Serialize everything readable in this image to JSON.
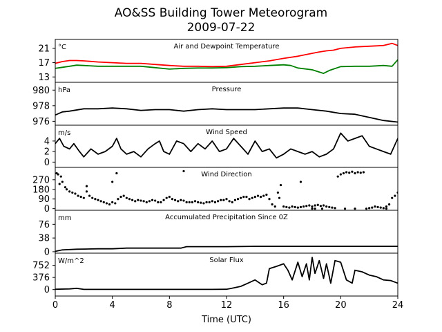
{
  "title": "AO&SS Building Tower Meteorogram",
  "subtitle": "2009-07-22",
  "xlabel": "Time (UTC)",
  "x_ticks": [
    0,
    4,
    8,
    12,
    16,
    20,
    24
  ],
  "xlim": [
    0,
    24
  ],
  "chart_data": [
    {
      "type": "line",
      "title": "Air and Dewpoint Temperature",
      "unit": "°C",
      "ylim": [
        11.5,
        23.5
      ],
      "y_ticks": [
        13,
        17,
        21
      ],
      "series": [
        {
          "color": "#ff0000",
          "x": [
            0,
            0.5,
            1,
            1.5,
            2,
            3,
            4,
            5,
            6,
            7,
            8,
            9,
            10,
            11,
            12,
            13,
            14,
            15,
            16,
            17,
            18,
            18.5,
            19,
            19.5,
            20,
            21,
            22,
            23,
            23.6,
            24
          ],
          "y": [
            16.8,
            17.3,
            17.6,
            17.6,
            17.5,
            17.2,
            17.0,
            16.8,
            16.8,
            16.5,
            16.2,
            16.0,
            16.0,
            15.9,
            16.0,
            16.5,
            17.0,
            17.5,
            18.2,
            18.8,
            19.6,
            20.0,
            20.3,
            20.5,
            21.0,
            21.4,
            21.6,
            21.8,
            22.4,
            21.8
          ]
        },
        {
          "color": "#008000",
          "x": [
            0,
            0.5,
            1,
            1.5,
            2,
            3,
            4,
            5,
            6,
            7,
            8,
            9,
            10,
            11,
            12,
            13,
            14,
            15,
            16,
            16.5,
            17,
            18,
            18.8,
            19.2,
            20,
            21,
            22,
            23,
            23.6,
            24
          ],
          "y": [
            15.4,
            15.7,
            16.0,
            16.3,
            16.2,
            16.0,
            16.0,
            16.0,
            16.0,
            15.6,
            15.2,
            15.4,
            15.5,
            15.5,
            15.6,
            15.9,
            16.0,
            16.2,
            16.4,
            16.2,
            15.5,
            15.0,
            14.0,
            14.8,
            15.9,
            16.0,
            16.0,
            16.2,
            16.0,
            17.8
          ]
        }
      ]
    },
    {
      "type": "line",
      "title": "Pressure",
      "unit": "hPa",
      "ylim": [
        975.5,
        981
      ],
      "y_ticks": [
        976,
        978,
        980
      ],
      "series": [
        {
          "color": "#000000",
          "x": [
            0,
            0.5,
            1,
            2,
            3,
            4,
            5,
            6,
            7,
            8,
            9,
            10,
            11,
            12,
            13,
            14,
            15,
            16,
            17,
            18,
            19,
            20,
            21,
            22,
            23,
            24
          ],
          "y": [
            976.8,
            977.2,
            977.3,
            977.6,
            977.6,
            977.7,
            977.6,
            977.4,
            977.5,
            977.5,
            977.3,
            977.5,
            977.6,
            977.5,
            977.5,
            977.5,
            977.6,
            977.7,
            977.7,
            977.5,
            977.3,
            977.0,
            976.9,
            976.5,
            976.1,
            975.9
          ]
        }
      ]
    },
    {
      "type": "line",
      "title": "Wind Speed",
      "unit": "m/s",
      "ylim": [
        -1,
        7
      ],
      "y_ticks": [
        0,
        2,
        4
      ],
      "series": [
        {
          "color": "#000000",
          "x": [
            0,
            0.3,
            0.6,
            1,
            1.3,
            1.7,
            2,
            2.5,
            3,
            3.5,
            4,
            4.3,
            4.6,
            5,
            5.5,
            6,
            6.5,
            7,
            7.3,
            7.6,
            8,
            8.5,
            9,
            9.5,
            10,
            10.5,
            11,
            11.5,
            12,
            12.5,
            13,
            13.5,
            14,
            14.5,
            15,
            15.5,
            16,
            16.5,
            17,
            17.5,
            18,
            18.5,
            19,
            19.5,
            20,
            20.5,
            21,
            21.5,
            22,
            22.5,
            23,
            23.5,
            24
          ],
          "y": [
            3.5,
            4.5,
            3.0,
            2.5,
            3.5,
            2.0,
            1.0,
            2.5,
            1.5,
            2.0,
            3.0,
            4.5,
            2.5,
            1.5,
            2.0,
            1.0,
            2.5,
            3.5,
            4.0,
            2.0,
            1.5,
            4.0,
            3.5,
            2.0,
            3.5,
            2.5,
            4.0,
            2.0,
            2.5,
            4.5,
            3.0,
            1.5,
            4.0,
            2.0,
            2.5,
            0.8,
            1.5,
            2.5,
            2.0,
            1.5,
            2.0,
            1.0,
            1.5,
            2.5,
            5.5,
            4.0,
            4.5,
            5.0,
            3.0,
            2.5,
            2.0,
            1.5,
            4.5
          ]
        }
      ]
    },
    {
      "type": "scatter",
      "title": "Wind Direction",
      "unit": "",
      "ylim": [
        -15,
        385
      ],
      "y_ticks": [
        0,
        90,
        180,
        270
      ],
      "series": [
        {
          "color": "#000000",
          "x": [
            0.1,
            0.2,
            0.4,
            0.5,
            0.7,
            0.8,
            1.0,
            1.2,
            1.4,
            1.6,
            1.8,
            2.0,
            2.2,
            2.4,
            2.6,
            2.8,
            3.0,
            3.2,
            3.4,
            3.6,
            3.8,
            4.0,
            4.2,
            4.4,
            4.6,
            4.8,
            5.0,
            5.2,
            5.4,
            5.6,
            5.8,
            6.0,
            6.2,
            6.4,
            6.6,
            6.8,
            7.0,
            7.2,
            7.4,
            7.6,
            7.8,
            8.0,
            8.2,
            8.4,
            8.6,
            8.8,
            9.0,
            9.2,
            9.4,
            9.6,
            9.8,
            10.0,
            10.2,
            10.4,
            10.6,
            10.8,
            11.0,
            11.2,
            11.4,
            11.6,
            11.8,
            12.0,
            12.2,
            12.4,
            12.6,
            12.8,
            13.0,
            13.2,
            13.4,
            13.6,
            13.8,
            14.0,
            14.2,
            14.4,
            14.6,
            14.8,
            15.0,
            15.2,
            15.4,
            15.6,
            15.8,
            16.0,
            16.2,
            16.4,
            16.6,
            16.8,
            17.0,
            17.2,
            17.4,
            17.6,
            17.8,
            18.0,
            18.2,
            18.4,
            18.6,
            18.8,
            19.0,
            19.2,
            19.4,
            19.6,
            19.8,
            20.0,
            20.2,
            20.4,
            20.6,
            20.8,
            21.0,
            21.2,
            21.4,
            21.6,
            21.8,
            22.0,
            22.2,
            22.4,
            22.6,
            22.8,
            23.0,
            23.2,
            23.4,
            23.6,
            23.8,
            24.0,
            0.3,
            2.2,
            4.0,
            4.3,
            9.0,
            15.7,
            17.2,
            18.0,
            18.2,
            18.7,
            20.3,
            21.0,
            23.2
          ],
          "y": [
            330,
            320,
            300,
            250,
            200,
            180,
            160,
            150,
            140,
            120,
            110,
            100,
            160,
            120,
            100,
            90,
            80,
            70,
            60,
            50,
            40,
            60,
            50,
            90,
            110,
            120,
            100,
            90,
            80,
            70,
            80,
            75,
            70,
            60,
            70,
            80,
            75,
            60,
            60,
            80,
            100,
            110,
            90,
            80,
            70,
            80,
            75,
            60,
            60,
            60,
            70,
            60,
            55,
            50,
            60,
            60,
            70,
            60,
            70,
            80,
            80,
            90,
            70,
            60,
            80,
            90,
            100,
            110,
            110,
            90,
            100,
            110,
            120,
            110,
            120,
            130,
            90,
            40,
            20,
            150,
            220,
            20,
            15,
            10,
            20,
            15,
            10,
            15,
            20,
            25,
            30,
            20,
            30,
            35,
            25,
            30,
            20,
            15,
            10,
            5,
            300,
            320,
            330,
            340,
            335,
            345,
            330,
            340,
            335,
            340,
            0,
            5,
            10,
            20,
            15,
            10,
            5,
            20,
            40,
            100,
            120,
            150,
            230,
            210,
            250,
            330,
            350,
            100,
            250,
            0,
            0,
            0,
            0,
            0,
            0
          ]
        }
      ]
    },
    {
      "type": "line",
      "title": "Accumulated Precipitation Since 0Z",
      "unit": "mm",
      "ylim": [
        -4,
        115
      ],
      "y_ticks": [
        0,
        38,
        76
      ],
      "series": [
        {
          "color": "#000000",
          "x": [
            0,
            0.5,
            1.5,
            3,
            4,
            5,
            6,
            7,
            8,
            8.8,
            9.2,
            10,
            12,
            14,
            16,
            18,
            20,
            22,
            24
          ],
          "y": [
            1,
            5,
            7,
            8,
            8,
            10,
            10,
            10,
            10,
            10,
            14,
            14,
            14,
            15,
            15,
            15,
            15,
            15,
            15
          ]
        }
      ]
    },
    {
      "type": "line",
      "title": "Solar Flux",
      "unit": "W/m^2",
      "ylim": [
        -200,
        1130
      ],
      "y_ticks": [
        0,
        376,
        752
      ],
      "series": [
        {
          "color": "#000000",
          "x": [
            0,
            1,
            1.5,
            2,
            3,
            4,
            5,
            6,
            7,
            8,
            9,
            10,
            11,
            12,
            12.5,
            13,
            13.5,
            14,
            14.5,
            14.8,
            15,
            15.5,
            16,
            16.3,
            16.6,
            17,
            17.3,
            17.6,
            17.8,
            18,
            18.2,
            18.5,
            18.8,
            19.0,
            19.3,
            19.6,
            20,
            20.4,
            20.8,
            21,
            21.5,
            22,
            22.5,
            23,
            23.5,
            24
          ],
          "y": [
            10,
            20,
            40,
            5,
            5,
            5,
            5,
            5,
            5,
            5,
            5,
            5,
            5,
            10,
            50,
            100,
            200,
            300,
            150,
            200,
            650,
            720,
            800,
            600,
            300,
            850,
            400,
            800,
            300,
            1000,
            500,
            900,
            350,
            800,
            200,
            900,
            850,
            300,
            200,
            600,
            550,
            450,
            400,
            300,
            280,
            200
          ]
        }
      ]
    }
  ]
}
